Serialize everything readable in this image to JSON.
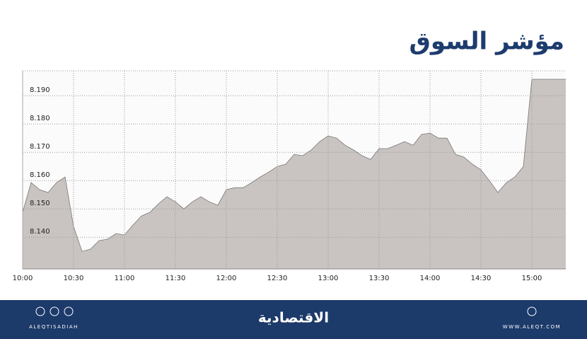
{
  "chart_data": {
    "type": "area",
    "title": "مؤشر السوق",
    "categories": [
      "10:00",
      null,
      null,
      null,
      null,
      null,
      "10:30",
      null,
      null,
      null,
      null,
      null,
      "11:00",
      null,
      null,
      null,
      null,
      null,
      "11:30",
      null,
      null,
      null,
      null,
      null,
      "12:00",
      null,
      null,
      null,
      null,
      null,
      "12:30",
      null,
      null,
      null,
      null,
      null,
      "13:00",
      null,
      null,
      null,
      null,
      null,
      "13:30",
      null,
      null,
      null,
      null,
      null,
      "14:00",
      null,
      null,
      null,
      null,
      null,
      "14:30",
      null,
      null,
      null,
      null,
      null,
      "15:00",
      null,
      null,
      null,
      null
    ],
    "values": [
      8.1488,
      8.1593,
      8.1568,
      8.1558,
      8.1593,
      8.1613,
      8.1438,
      8.135,
      8.1358,
      8.1388,
      8.1393,
      8.1413,
      8.1408,
      8.1443,
      8.1475,
      8.1488,
      8.1518,
      8.1543,
      8.1525,
      8.15,
      8.1525,
      8.1543,
      8.1525,
      8.1513,
      8.1568,
      8.1575,
      8.1575,
      8.1593,
      8.1613,
      8.163,
      8.165,
      8.1658,
      8.1693,
      8.1688,
      8.1708,
      8.1738,
      8.1758,
      8.175,
      8.1725,
      8.1708,
      8.1688,
      8.1675,
      8.1713,
      8.1713,
      8.1725,
      8.1738,
      8.1725,
      8.1763,
      8.1768,
      8.175,
      8.175,
      8.1693,
      8.1683,
      8.1658,
      8.1638,
      8.16,
      8.1558,
      8.1593,
      8.1613,
      8.165,
      8.1958,
      8.1958,
      8.1958,
      8.1958,
      8.1958
    ],
    "color": "#c9c4c1",
    "line_color": "#7a7673",
    "ylim": [
      8.1288,
      8.1988
    ],
    "yticks": [
      {
        "value": 8.14,
        "label": "8.140"
      },
      {
        "value": 8.15,
        "label": "8.150"
      },
      {
        "value": 8.16,
        "label": "8.160"
      },
      {
        "value": 8.17,
        "label": "8.170"
      },
      {
        "value": 8.18,
        "label": "8.180"
      },
      {
        "value": 8.19,
        "label": "8.190"
      }
    ],
    "grid": true
  },
  "footer": {
    "brand": "الاقتصادية",
    "handle": "ALEQTISADIAH",
    "website": "WWW.ALEQT.COM"
  }
}
